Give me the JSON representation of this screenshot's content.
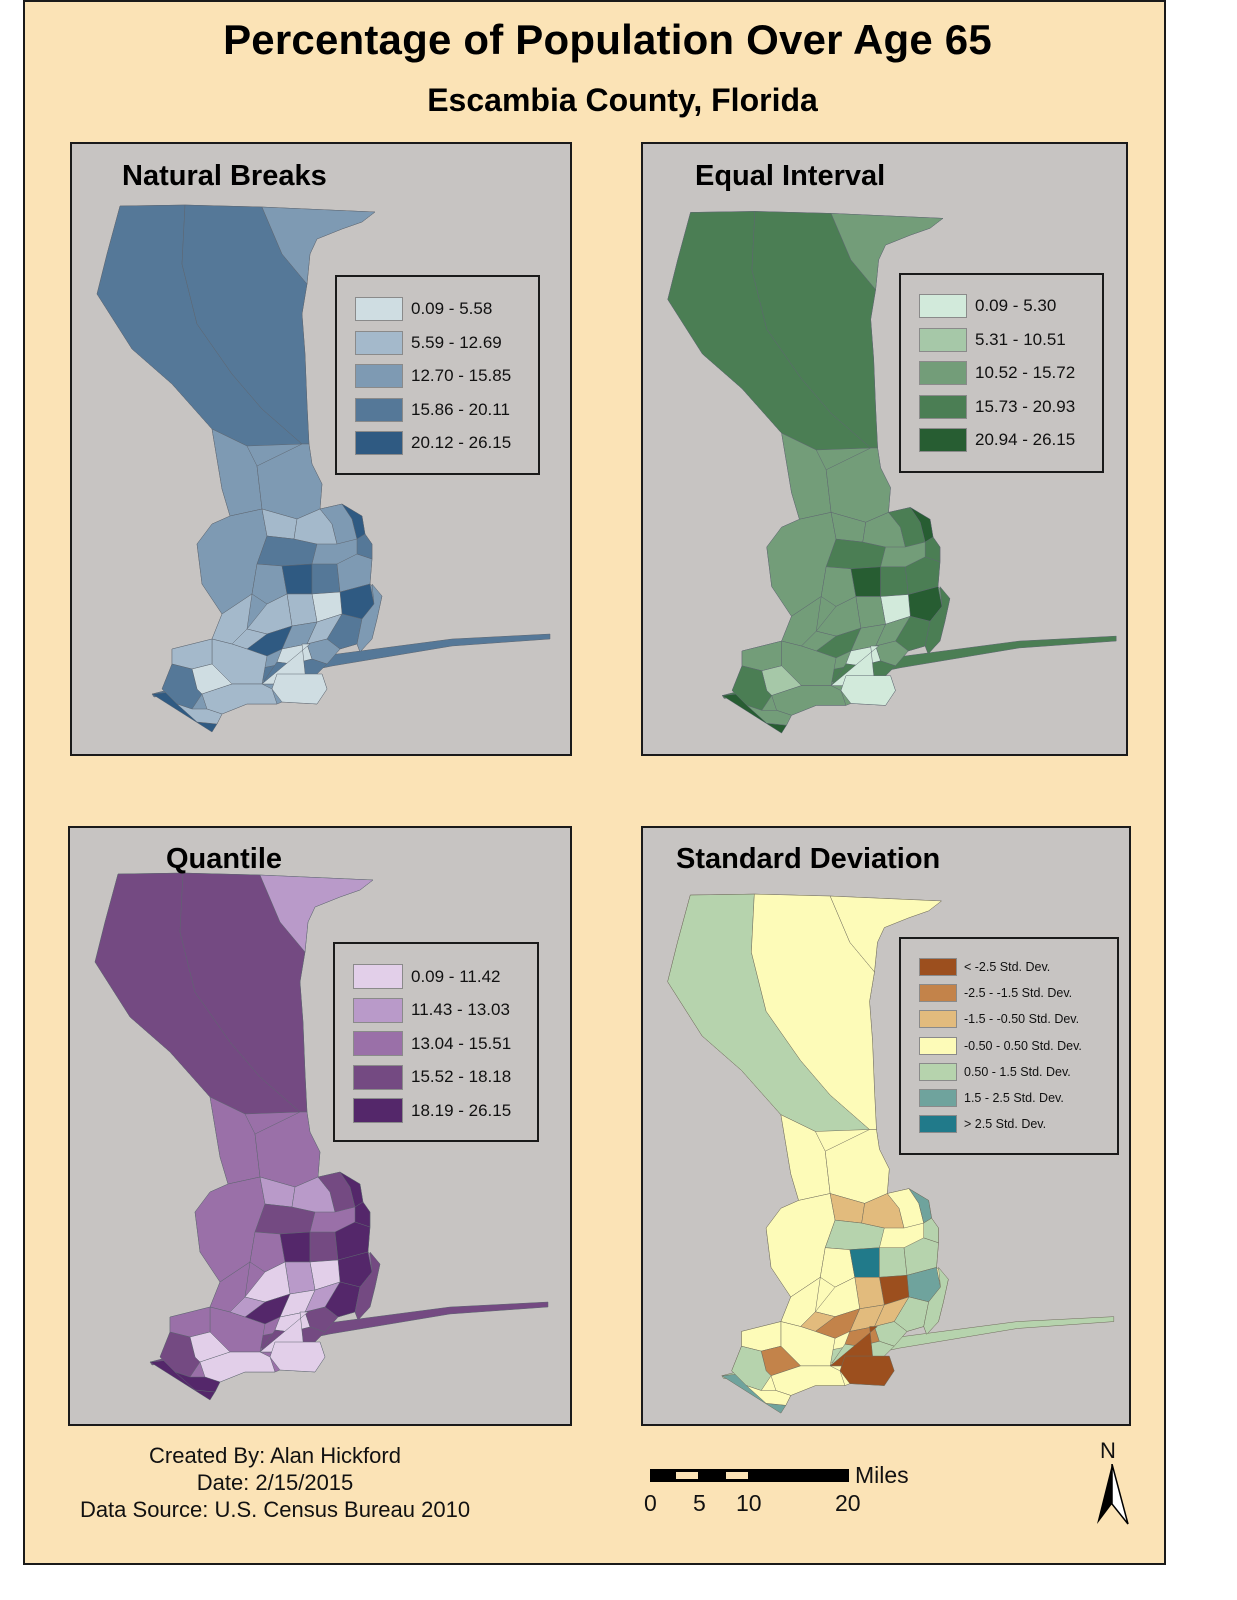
{
  "map": {
    "title": "Percentage of Population Over Age 65",
    "subtitle": "Escambia County, Florida",
    "background_color": "#fbe3b6",
    "panel_color": "#c7c4c2"
  },
  "panels": [
    {
      "title": "Natural Breaks",
      "legend": [
        {
          "label": "0.09 - 5.58",
          "color": "#cfdde2"
        },
        {
          "label": "5.59 - 12.69",
          "color": "#a4b9cb"
        },
        {
          "label": "12.70 - 15.85",
          "color": "#7e9ab3"
        },
        {
          "label": "15.86 - 20.11",
          "color": "#557898"
        },
        {
          "label": "20.12 - 26.15",
          "color": "#2f5a82"
        }
      ]
    },
    {
      "title": "Equal Interval",
      "legend": [
        {
          "label": "0.09 - 5.30",
          "color": "#d2eadb"
        },
        {
          "label": "5.31 - 10.51",
          "color": "#a6c8a8"
        },
        {
          "label": "10.52 - 15.72",
          "color": "#739d79"
        },
        {
          "label": "15.73 - 20.93",
          "color": "#4b7e54"
        },
        {
          "label": "20.94 - 26.15",
          "color": "#275d32"
        }
      ]
    },
    {
      "title": "Quantile",
      "legend": [
        {
          "label": "0.09 - 11.42",
          "color": "#e2cfe9"
        },
        {
          "label": "11.43 - 13.03",
          "color": "#b99ac9"
        },
        {
          "label": "13.04 - 15.51",
          "color": "#9a70a8"
        },
        {
          "label": "15.52 - 18.18",
          "color": "#744a82"
        },
        {
          "label": "18.19 - 26.15",
          "color": "#54276a"
        }
      ]
    },
    {
      "title": "Standard Deviation",
      "legend": [
        {
          "label": "< -2.5 Std. Dev.",
          "color": "#9c4f1e"
        },
        {
          "label": "-2.5 - -1.5 Std. Dev.",
          "color": "#c3834a"
        },
        {
          "label": "-1.5 - -0.50 Std. Dev.",
          "color": "#e2bb7d"
        },
        {
          "label": "-0.50 - 0.50 Std. Dev.",
          "color": "#fdfbb8"
        },
        {
          "label": "0.50 - 1.5 Std. Dev.",
          "color": "#b6d3ad"
        },
        {
          "label": "1.5 - 2.5 Std. Dev.",
          "color": "#6fa39d"
        },
        {
          "label": "> 2.5 Std. Dev.",
          "color": "#217a8a"
        }
      ]
    }
  ],
  "credits": {
    "created_by": "Created By: Alan Hickford",
    "date": "Date: 2/15/2015",
    "source": "Data Source: U.S. Census Bureau 2010"
  },
  "scale_bar": {
    "unit": "Miles",
    "ticks": [
      "0",
      "5",
      "10",
      "20"
    ]
  },
  "north_arrow": {
    "label": "N"
  }
}
